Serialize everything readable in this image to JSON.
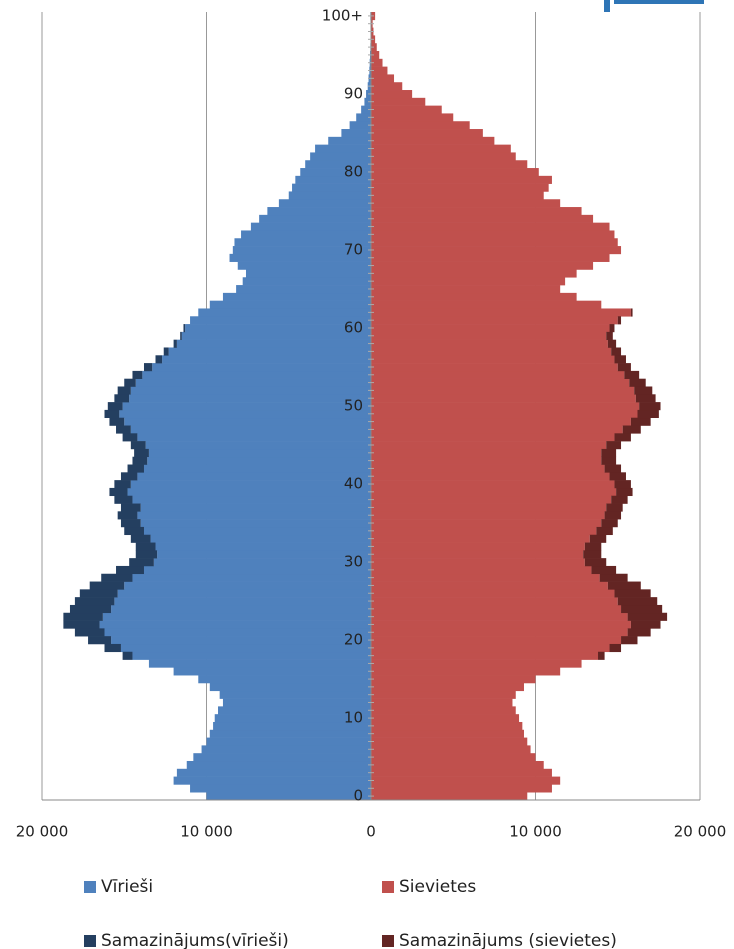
{
  "chart_data": {
    "type": "pyramid",
    "stacked": true,
    "grid": true,
    "categories": [
      "0",
      null,
      null,
      null,
      null,
      null,
      null,
      null,
      null,
      null,
      "10",
      null,
      null,
      null,
      null,
      null,
      null,
      null,
      null,
      null,
      "20",
      null,
      null,
      null,
      null,
      null,
      null,
      null,
      null,
      null,
      "30",
      null,
      null,
      null,
      null,
      null,
      null,
      null,
      null,
      null,
      "40",
      null,
      null,
      null,
      null,
      null,
      null,
      null,
      null,
      null,
      "50",
      null,
      null,
      null,
      null,
      null,
      null,
      null,
      null,
      null,
      "60",
      null,
      null,
      null,
      null,
      null,
      null,
      null,
      null,
      null,
      "70",
      null,
      null,
      null,
      null,
      null,
      null,
      null,
      null,
      null,
      "80",
      null,
      null,
      null,
      null,
      null,
      null,
      null,
      null,
      null,
      "90",
      null,
      null,
      null,
      null,
      null,
      null,
      null,
      null,
      null,
      "100+"
    ],
    "xlim": [
      -20000,
      20000
    ],
    "xticks": [
      {
        "value": -20000,
        "label": "20 000"
      },
      {
        "value": -10000,
        "label": "10 000"
      },
      0,
      {
        "value": 10000,
        "label": "10 000"
      },
      {
        "value": 20000,
        "label": "20 000"
      }
    ],
    "series": [
      {
        "name": "Vīrieši",
        "color": "#4f81bd",
        "values": [
          -10000,
          -11000,
          -12000,
          -11800,
          -11200,
          -10800,
          -10300,
          -10000,
          -9800,
          -9600,
          -9500,
          -9300,
          -9000,
          -9200,
          -9800,
          -10500,
          -12000,
          -13500,
          -14500,
          -15200,
          -15800,
          -16200,
          -16500,
          -16300,
          -15800,
          -15600,
          -15400,
          -15000,
          -14500,
          -13800,
          -13200,
          -13000,
          -13100,
          -13400,
          -13800,
          -14000,
          -14200,
          -14000,
          -14500,
          -14800,
          -14600,
          -14200,
          -13800,
          -13600,
          -13500,
          -13700,
          -14200,
          -14600,
          -15000,
          -15300,
          -15100,
          -14700,
          -14600,
          -14300,
          -13900,
          -13300,
          -12700,
          -12300,
          -11800,
          -11500,
          -11300,
          -11000,
          -10500,
          -9800,
          -9000,
          -8200,
          -7800,
          -7600,
          -8100,
          -8600,
          -8400,
          -8300,
          -7900,
          -7300,
          -6800,
          -6300,
          -5600,
          -5000,
          -4800,
          -4600,
          -4300,
          -4000,
          -3700,
          -3400,
          -2600,
          -1800,
          -1300,
          -900,
          -600,
          -400,
          -300,
          -200,
          -150,
          -100,
          -80,
          -60,
          -40,
          -30,
          -20,
          -15,
          -40
        ]
      },
      {
        "name": "Samazinājums(vīrieši)",
        "color": "#243f60",
        "values": [
          0,
          0,
          0,
          0,
          0,
          0,
          0,
          0,
          0,
          0,
          0,
          0,
          0,
          0,
          0,
          0,
          0,
          0,
          -600,
          -1000,
          -1400,
          -1800,
          -2200,
          -2400,
          -2500,
          -2400,
          -2300,
          -2100,
          -1900,
          -1700,
          -1500,
          -1300,
          -1200,
          -1200,
          -1200,
          -1200,
          -1200,
          -1200,
          -1100,
          -1100,
          -1000,
          -1000,
          -1000,
          -900,
          -900,
          -900,
          -900,
          -900,
          -900,
          -900,
          -900,
          -900,
          -800,
          -700,
          -600,
          -500,
          -400,
          -300,
          -200,
          -100,
          -100,
          0,
          0,
          0,
          0,
          0,
          0,
          0,
          0,
          0,
          0,
          0,
          0,
          0,
          0,
          0,
          0,
          0,
          0,
          0,
          0,
          0,
          0,
          0,
          0,
          0,
          0,
          0,
          0,
          0,
          0,
          0,
          0,
          0,
          0,
          0,
          0,
          0,
          0,
          0,
          0
        ]
      },
      {
        "name": "Sievietes",
        "color": "#c0504d",
        "values": [
          9500,
          11000,
          11500,
          11000,
          10500,
          10000,
          9700,
          9500,
          9300,
          9200,
          9000,
          8800,
          8600,
          8800,
          9300,
          10000,
          11500,
          12800,
          13800,
          14500,
          15200,
          15600,
          15800,
          15600,
          15200,
          15000,
          14800,
          14400,
          13900,
          13400,
          13000,
          12900,
          13000,
          13300,
          13700,
          14000,
          14200,
          14300,
          14600,
          14900,
          14800,
          14500,
          14200,
          14000,
          14000,
          14300,
          14800,
          15300,
          15800,
          16200,
          16300,
          16100,
          16000,
          15700,
          15400,
          15000,
          14800,
          14600,
          14400,
          14300,
          14500,
          15000,
          15800,
          14000,
          12500,
          11500,
          11800,
          12500,
          13500,
          14500,
          15200,
          15000,
          14800,
          14500,
          13500,
          12800,
          11500,
          10500,
          10800,
          11000,
          10200,
          9500,
          8800,
          8500,
          7500,
          6800,
          6000,
          5000,
          4300,
          3300,
          2500,
          1900,
          1400,
          1000,
          700,
          500,
          350,
          250,
          150,
          100,
          250
        ]
      },
      {
        "name": "Samazinājums (sievietes)",
        "color": "#632523",
        "values": [
          0,
          0,
          0,
          0,
          0,
          0,
          0,
          0,
          0,
          0,
          0,
          0,
          0,
          0,
          0,
          0,
          0,
          0,
          400,
          700,
          1000,
          1400,
          1800,
          2400,
          2500,
          2400,
          2200,
          2000,
          1700,
          1500,
          1300,
          1100,
          1000,
          1000,
          1000,
          1000,
          1000,
          1000,
          1000,
          1000,
          1000,
          1000,
          1000,
          900,
          900,
          900,
          1000,
          1100,
          1200,
          1300,
          1300,
          1200,
          1100,
          1000,
          900,
          800,
          700,
          600,
          500,
          400,
          300,
          200,
          100,
          0,
          0,
          0,
          0,
          0,
          0,
          0,
          0,
          0,
          0,
          0,
          0,
          0,
          0,
          0,
          0,
          0,
          0,
          0,
          0,
          0,
          0,
          0,
          0,
          0,
          0,
          0,
          0,
          0,
          0,
          0,
          0,
          0,
          0,
          0,
          0,
          0,
          0
        ]
      }
    ]
  }
}
